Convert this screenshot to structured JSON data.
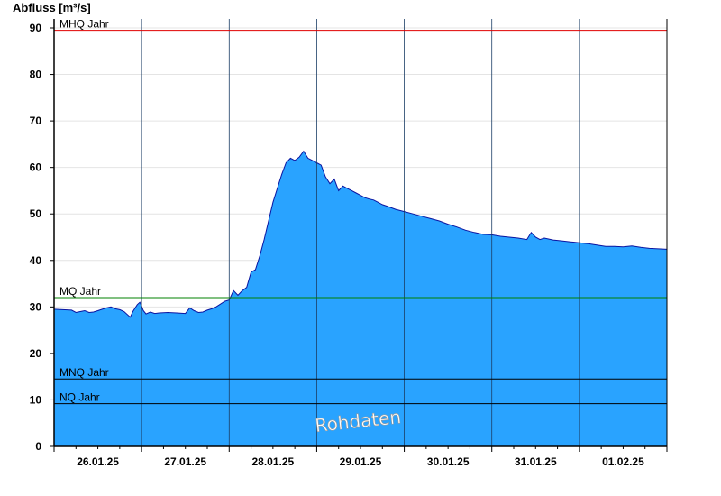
{
  "chart_data": {
    "type": "area",
    "title": "",
    "ylabel": "Abfluss [m³/s]",
    "xlabel": "",
    "ylim": [
      0,
      92
    ],
    "yticks": [
      0,
      10,
      20,
      30,
      40,
      50,
      60,
      70,
      80,
      90
    ],
    "xlim": [
      0,
      7
    ],
    "day_boundaries": [
      0,
      1,
      2,
      3,
      4,
      5,
      6,
      7
    ],
    "date_labels": [
      "26.01.25",
      "27.01.25",
      "28.01.25",
      "29.01.25",
      "30.01.25",
      "31.01.25",
      "01.02.25"
    ],
    "grid": true,
    "fill_color": "#29a3ff",
    "line_color": "#0a14a0",
    "watermark": "Rohdaten",
    "reference_lines": [
      {
        "name": "MHQ Jahr",
        "value": 89.5,
        "color": "#e00000"
      },
      {
        "name": "MQ Jahr",
        "value": 32.0,
        "color": "#008000"
      },
      {
        "name": "MNQ Jahr",
        "value": 14.5,
        "color": "#000000"
      },
      {
        "name": "NQ Jahr",
        "value": 9.2,
        "color": "#000000"
      }
    ],
    "series": [
      {
        "x": [
          0,
          0.2,
          0.25,
          0.3,
          0.35,
          0.4,
          0.45,
          0.5,
          0.55,
          0.6,
          0.65,
          0.7,
          0.75,
          0.8,
          0.87,
          0.9,
          0.95,
          0.98,
          1.0,
          1.02,
          1.05,
          1.1,
          1.15,
          1.2,
          1.3,
          1.4,
          1.5,
          1.55,
          1.6,
          1.65,
          1.7,
          1.75,
          1.8,
          1.85,
          1.9,
          1.95,
          2.0,
          2.05,
          2.1,
          2.15,
          2.2,
          2.25,
          2.3,
          2.35,
          2.4,
          2.45,
          2.5,
          2.55,
          2.6,
          2.65,
          2.7,
          2.75,
          2.8,
          2.85,
          2.9,
          2.95,
          3.0,
          3.05,
          3.1,
          3.15,
          3.2,
          3.25,
          3.3,
          3.35,
          3.4,
          3.45,
          3.5,
          3.55,
          3.6,
          3.65,
          3.7,
          3.75,
          3.8,
          3.9,
          4.0,
          4.1,
          4.2,
          4.3,
          4.4,
          4.5,
          4.6,
          4.7,
          4.8,
          4.9,
          5.0,
          5.1,
          5.2,
          5.3,
          5.4,
          5.45,
          5.5,
          5.55,
          5.6,
          5.7,
          5.8,
          5.9,
          6.0,
          6.1,
          6.2,
          6.3,
          6.4,
          6.5,
          6.6,
          6.7,
          6.8,
          6.9,
          7.0
        ],
        "y": [
          29.5,
          29.3,
          28.8,
          29.0,
          29.2,
          28.8,
          28.9,
          29.2,
          29.5,
          29.8,
          30.0,
          29.6,
          29.4,
          29.0,
          27.8,
          29.0,
          30.5,
          31.0,
          30.2,
          29.2,
          28.5,
          28.9,
          28.6,
          28.7,
          28.8,
          28.7,
          28.6,
          29.8,
          29.2,
          28.8,
          28.9,
          29.3,
          29.6,
          30.0,
          30.6,
          31.2,
          31.5,
          33.5,
          32.5,
          33.5,
          34.2,
          37.5,
          38.0,
          41.0,
          44.5,
          48.5,
          52.5,
          55.5,
          58.5,
          61.0,
          62.0,
          61.5,
          62.2,
          63.5,
          62.0,
          61.5,
          61.0,
          60.5,
          58.0,
          56.5,
          57.5,
          55.0,
          56.0,
          55.5,
          55.0,
          54.5,
          54.0,
          53.5,
          53.2,
          53.0,
          52.5,
          52.0,
          51.7,
          51.0,
          50.5,
          50.0,
          49.5,
          49.0,
          48.5,
          47.8,
          47.2,
          46.5,
          46.0,
          45.6,
          45.5,
          45.2,
          45.0,
          44.8,
          44.5,
          46.0,
          45.0,
          44.5,
          44.8,
          44.4,
          44.2,
          44.0,
          43.8,
          43.6,
          43.3,
          43.0,
          43.0,
          42.9,
          43.1,
          42.8,
          42.6,
          42.5,
          42.4
        ]
      }
    ]
  }
}
